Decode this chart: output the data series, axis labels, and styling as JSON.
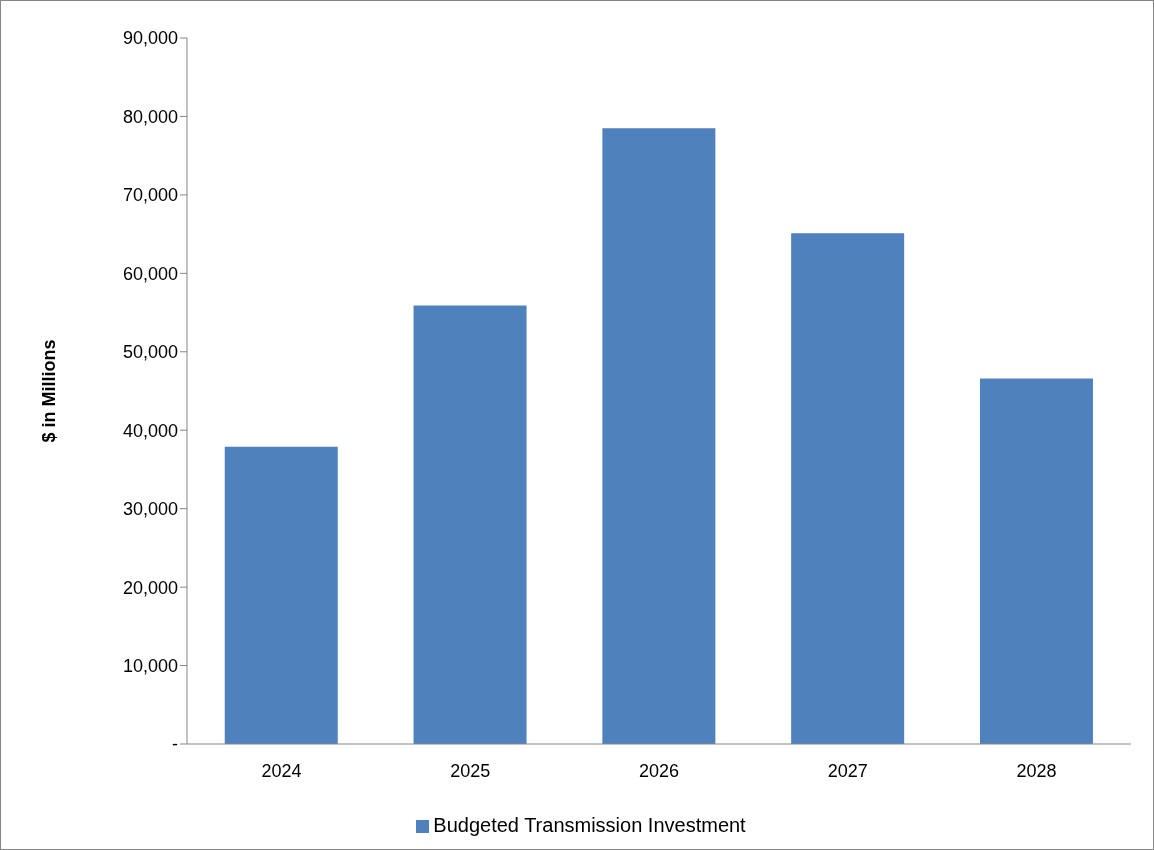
{
  "chart_data": {
    "type": "bar",
    "ylabel": "$ in Millions",
    "categories": [
      "2024",
      "2025",
      "2026",
      "2027",
      "2028"
    ],
    "series": [
      {
        "name": "Budgeted Transmission Investment",
        "color": "#4f81bd",
        "values": [
          37900,
          55900,
          78500,
          65100,
          46600
        ]
      }
    ],
    "ylim": [
      0,
      90000
    ],
    "yticks": [
      {
        "value": 0,
        "label": "-"
      },
      {
        "value": 10000,
        "label": "10,000"
      },
      {
        "value": 20000,
        "label": "20,000"
      },
      {
        "value": 30000,
        "label": "30,000"
      },
      {
        "value": 40000,
        "label": "40,000"
      },
      {
        "value": 50000,
        "label": "50,000"
      },
      {
        "value": 60000,
        "label": "60,000"
      },
      {
        "value": 70000,
        "label": "70,000"
      },
      {
        "value": 80000,
        "label": "80,000"
      },
      {
        "value": 90000,
        "label": "90,000"
      }
    ],
    "grid": false,
    "legend": "bottom"
  }
}
